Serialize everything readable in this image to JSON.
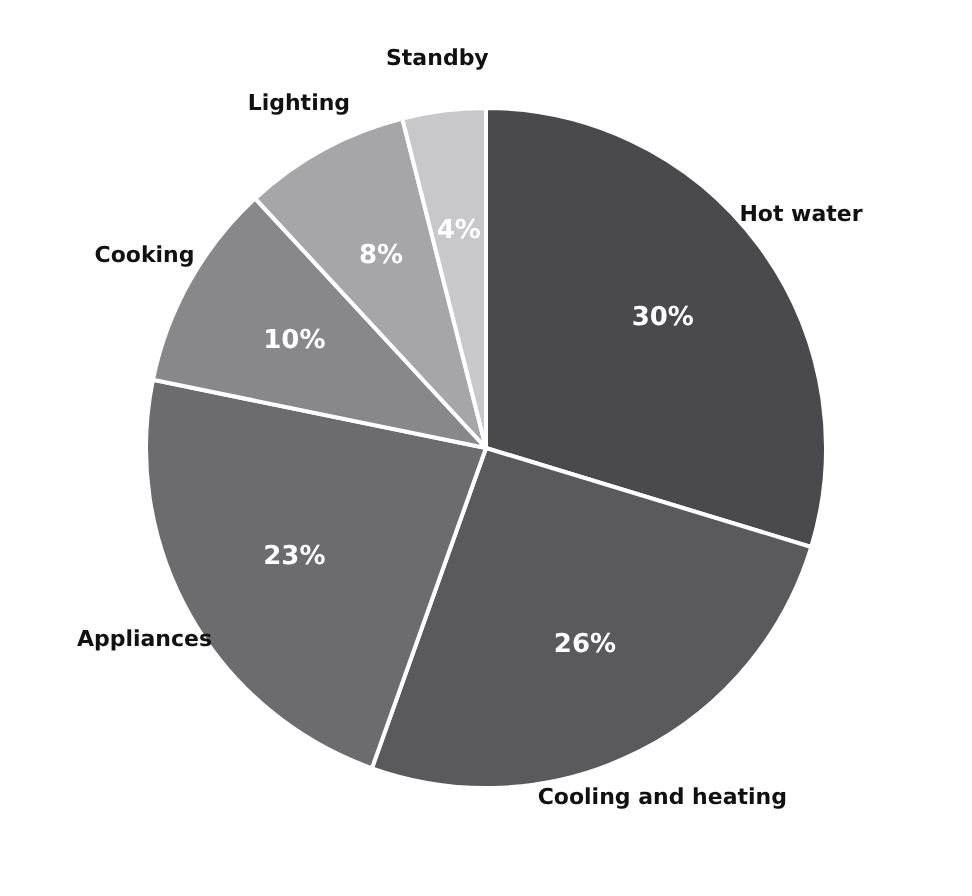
{
  "chart_data": {
    "type": "pie",
    "categories": [
      "Hot water",
      "Cooling and heating",
      "Appliances",
      "Cooking",
      "Lighting",
      "Standby"
    ],
    "values": [
      30,
      26,
      23,
      10,
      8,
      4
    ],
    "value_labels": [
      "30%",
      "26%",
      "23%",
      "10%",
      "8%",
      "4%"
    ],
    "colors": [
      "#4a4a4c",
      "#5a5a5c",
      "#6c6c6e",
      "#88888a",
      "#a6a6a8",
      "#c8c8ca"
    ]
  }
}
